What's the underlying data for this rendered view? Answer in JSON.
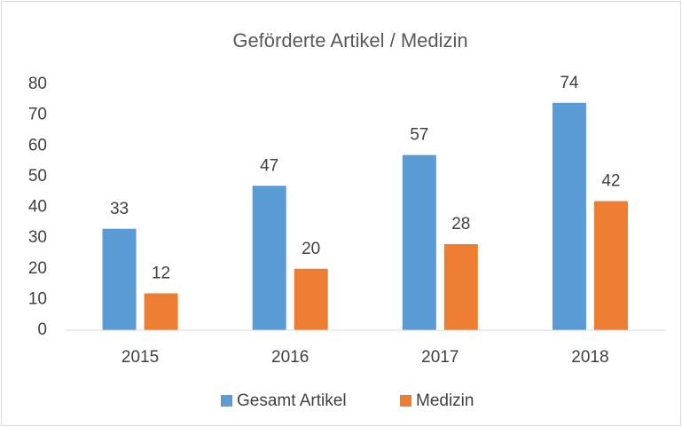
{
  "chart_data": {
    "type": "bar",
    "title": "Geförderte Artikel / Medizin",
    "categories": [
      "2015",
      "2016",
      "2017",
      "2018"
    ],
    "series": [
      {
        "name": "Gesamt Artikel",
        "color": "#5b9bd5",
        "values": [
          33,
          47,
          57,
          74
        ]
      },
      {
        "name": "Medizin",
        "color": "#ed7d31",
        "values": [
          12,
          20,
          28,
          42
        ]
      }
    ],
    "ylim": [
      0,
      80
    ],
    "yticks": [
      0,
      10,
      20,
      30,
      40,
      50,
      60,
      70,
      80
    ],
    "grid": false,
    "legend": "bottom"
  }
}
